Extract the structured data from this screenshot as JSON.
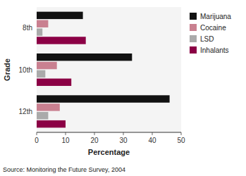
{
  "chart_data": {
    "type": "bar",
    "orientation": "horizontal",
    "x_label": "Percentage",
    "y_label": "Grade",
    "annotations": [
      "Source: Monitoring the Future Survey, 2004"
    ],
    "categories": [
      "8th",
      "10th",
      "12th"
    ],
    "series": [
      {
        "name": "Marijuana",
        "color": "#111111",
        "values": [
          16,
          33,
          46
        ]
      },
      {
        "name": "Cocaine",
        "color": "#c98090",
        "values": [
          4,
          7,
          8
        ]
      },
      {
        "name": "LSD",
        "color": "#aaaaaa",
        "values": [
          2,
          3,
          4
        ]
      },
      {
        "name": "Inhalants",
        "color": "#8b0045",
        "values": [
          17,
          12,
          10
        ]
      }
    ],
    "xlim": [
      0,
      50
    ],
    "xticks": [
      0,
      10,
      20,
      30,
      40,
      50
    ],
    "grid": false,
    "legend": "right"
  }
}
